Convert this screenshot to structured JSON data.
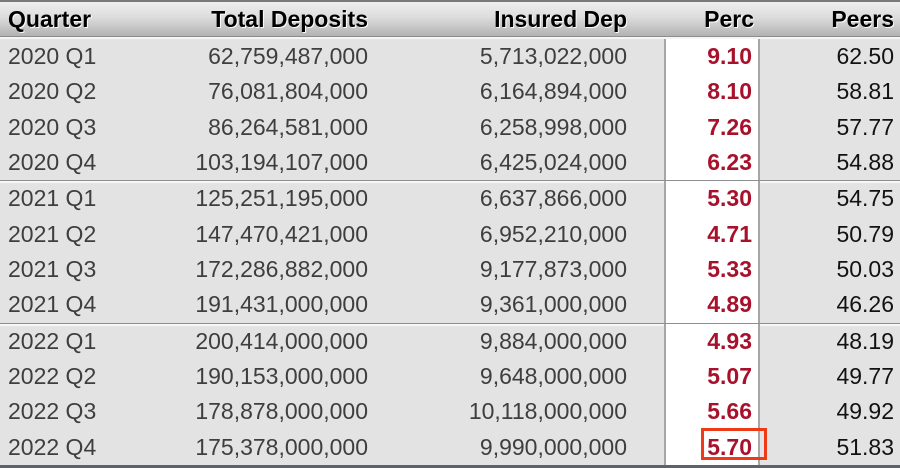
{
  "table": {
    "columns": [
      {
        "key": "quarter",
        "label": "Quarter",
        "align": "left"
      },
      {
        "key": "total_deposits",
        "label": "Total Deposits",
        "align": "right"
      },
      {
        "key": "insured_dep",
        "label": "Insured Dep",
        "align": "right"
      },
      {
        "key": "perc",
        "label": "Perc",
        "align": "right"
      },
      {
        "key": "peers",
        "label": "Peers",
        "align": "right"
      }
    ],
    "rows": [
      {
        "quarter": "2020 Q1",
        "total_deposits": "62,759,487,000",
        "insured_dep": "5,713,022,000",
        "perc": "9.10",
        "peers": "62.50"
      },
      {
        "quarter": "2020 Q2",
        "total_deposits": "76,081,804,000",
        "insured_dep": "6,164,894,000",
        "perc": "8.10",
        "peers": "58.81"
      },
      {
        "quarter": "2020 Q3",
        "total_deposits": "86,264,581,000",
        "insured_dep": "6,258,998,000",
        "perc": "7.26",
        "peers": "57.77"
      },
      {
        "quarter": "2020 Q4",
        "total_deposits": "103,194,107,000",
        "insured_dep": "6,425,024,000",
        "perc": "6.23",
        "peers": "54.88"
      },
      {
        "quarter": "2021 Q1",
        "total_deposits": "125,251,195,000",
        "insured_dep": "6,637,866,000",
        "perc": "5.30",
        "peers": "54.75"
      },
      {
        "quarter": "2021 Q2",
        "total_deposits": "147,470,421,000",
        "insured_dep": "6,952,210,000",
        "perc": "4.71",
        "peers": "50.79"
      },
      {
        "quarter": "2021 Q3",
        "total_deposits": "172,286,882,000",
        "insured_dep": "9,177,873,000",
        "perc": "5.33",
        "peers": "50.03"
      },
      {
        "quarter": "2021 Q4",
        "total_deposits": "191,431,000,000",
        "insured_dep": "9,361,000,000",
        "perc": "4.89",
        "peers": "46.26"
      },
      {
        "quarter": "2022 Q1",
        "total_deposits": "200,414,000,000",
        "insured_dep": "9,884,000,000",
        "perc": "4.93",
        "peers": "48.19"
      },
      {
        "quarter": "2022 Q2",
        "total_deposits": "190,153,000,000",
        "insured_dep": "9,648,000,000",
        "perc": "5.07",
        "peers": "49.77"
      },
      {
        "quarter": "2022 Q3",
        "total_deposits": "178,878,000,000",
        "insured_dep": "10,118,000,000",
        "perc": "5.66",
        "peers": "49.92"
      },
      {
        "quarter": "2022 Q4",
        "total_deposits": "175,378,000,000",
        "insured_dep": "9,990,000,000",
        "perc": "5.70",
        "peers": "51.83"
      }
    ],
    "group_breaks_before": [
      "2021 Q1",
      "2022 Q1"
    ],
    "highlight": {
      "row": "2022 Q4",
      "column": "perc",
      "value": "5.70",
      "border_color": "#ee3a17"
    }
  },
  "colors": {
    "body_background": "#e3e3e3",
    "perc_column_background": "#ffffff",
    "perc_text": "#a8112b",
    "peers_text": "#121212",
    "default_text": "#3e3e3e",
    "highlight_border": "#ee3a17",
    "bottom_border": "#5d636b"
  }
}
